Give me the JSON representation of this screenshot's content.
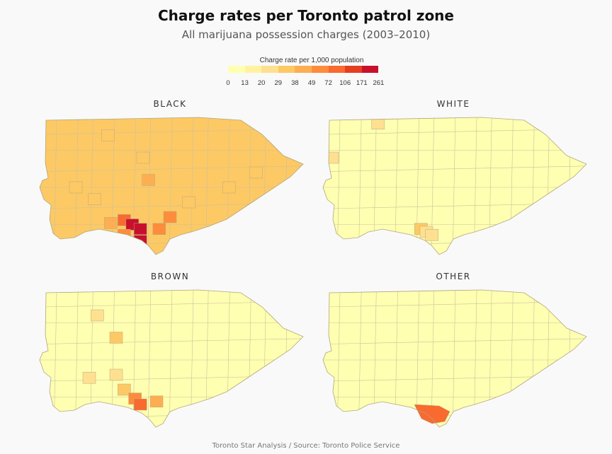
{
  "title": "Charge rates per Toronto patrol zone",
  "subtitle": "All marijuana possession charges (2003–2010)",
  "legend": {
    "title": "Charge rate per 1,000 population",
    "breaks": [
      "0",
      "13",
      "20",
      "29",
      "38",
      "49",
      "72",
      "106",
      "171",
      "261"
    ],
    "colors": [
      "#ffffb2",
      "#fff3a0",
      "#fee090",
      "#fdc965",
      "#fdae53",
      "#fd8d3c",
      "#f86a30",
      "#e63e20",
      "#c8102e"
    ]
  },
  "maps": [
    {
      "label": "BLACK",
      "hot": [
        [
          0.28,
          0.74,
          4
        ],
        [
          0.33,
          0.72,
          6
        ],
        [
          0.36,
          0.75,
          8
        ],
        [
          0.39,
          0.78,
          8
        ],
        [
          0.33,
          0.82,
          5
        ],
        [
          0.39,
          0.86,
          8
        ],
        [
          0.46,
          0.78,
          5
        ],
        [
          0.5,
          0.7,
          5
        ],
        [
          0.42,
          0.45,
          4
        ],
        [
          0.4,
          0.3,
          3
        ],
        [
          0.27,
          0.15,
          3
        ],
        [
          0.57,
          0.6,
          3
        ],
        [
          0.72,
          0.5,
          3
        ],
        [
          0.82,
          0.4,
          3
        ],
        [
          0.15,
          0.5,
          3
        ],
        [
          0.22,
          0.58,
          3
        ]
      ],
      "base": 3
    },
    {
      "label": "WHITE",
      "hot": [
        [
          0.38,
          0.78,
          3
        ],
        [
          0.4,
          0.8,
          2
        ],
        [
          0.42,
          0.82,
          2
        ],
        [
          0.22,
          0.07,
          2
        ],
        [
          0.05,
          0.3,
          2
        ]
      ],
      "base": 0
    },
    {
      "label": "BROWN",
      "hot": [
        [
          0.23,
          0.2,
          2
        ],
        [
          0.3,
          0.35,
          3
        ],
        [
          0.33,
          0.7,
          3
        ],
        [
          0.37,
          0.76,
          5
        ],
        [
          0.39,
          0.8,
          6
        ],
        [
          0.45,
          0.78,
          4
        ],
        [
          0.3,
          0.6,
          2
        ],
        [
          0.2,
          0.62,
          2
        ]
      ],
      "base": 0
    },
    {
      "label": "OTHER",
      "hot": [],
      "base": 0,
      "island": true
    }
  ],
  "footer": "Toronto Star Analysis / Source: Toronto Police Service"
}
